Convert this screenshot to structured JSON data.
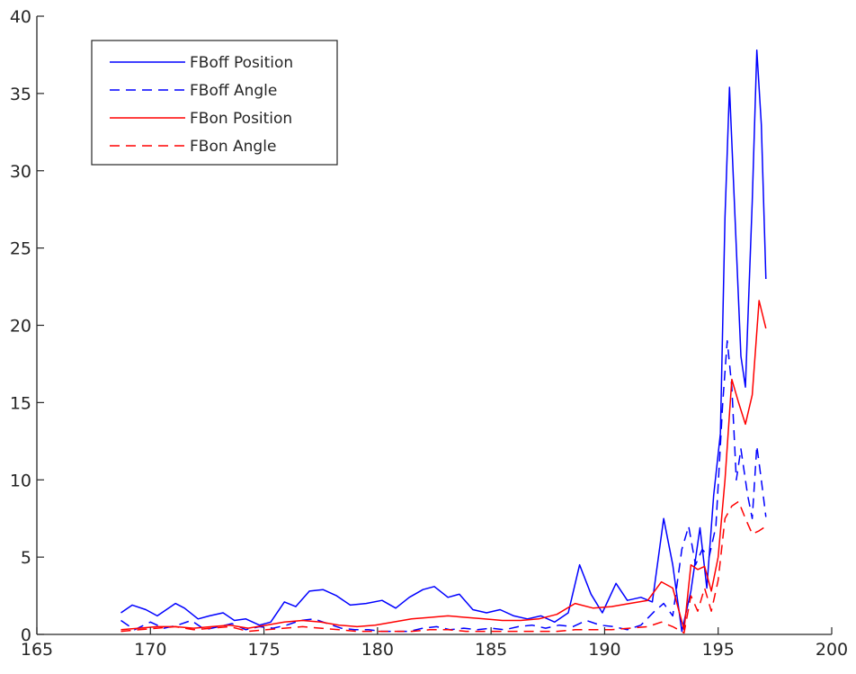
{
  "chart_data": {
    "type": "line",
    "title": "",
    "xlabel": "",
    "ylabel": "",
    "xlim": [
      165,
      200
    ],
    "ylim": [
      0,
      40
    ],
    "xticks": [
      165,
      170,
      175,
      180,
      185,
      190,
      195,
      200
    ],
    "yticks": [
      0,
      5,
      10,
      15,
      20,
      25,
      30,
      35,
      40
    ],
    "xtick_labels": [
      "165",
      "170",
      "175",
      "180",
      "185",
      "190",
      "195",
      "200"
    ],
    "ytick_labels": [
      "0",
      "5",
      "10",
      "15",
      "20",
      "25",
      "30",
      "35",
      "40"
    ],
    "grid": false,
    "legend_placement": "top-left",
    "colors": {
      "blue": "#0000ff",
      "red": "#ff0000",
      "axis": "#262626"
    },
    "series": [
      {
        "name": "FBoff Position",
        "color": "#0000ff",
        "dash": "solid",
        "x": [
          168.7,
          169.2,
          169.8,
          170.3,
          171.1,
          171.5,
          172.1,
          172.6,
          173.2,
          173.7,
          174.2,
          174.8,
          175.3,
          175.9,
          176.4,
          177.0,
          177.6,
          178.2,
          178.8,
          179.5,
          180.2,
          180.8,
          181.4,
          182.0,
          182.5,
          183.1,
          183.6,
          184.2,
          184.8,
          185.4,
          186.0,
          186.6,
          187.2,
          187.8,
          188.4,
          188.9,
          189.4,
          189.9,
          190.5,
          191.0,
          191.6,
          192.1,
          192.6,
          193.0,
          193.4,
          193.8,
          194.2,
          194.5,
          194.8,
          195.1,
          195.3,
          195.5,
          195.8,
          196.0,
          196.2,
          196.5,
          196.7,
          196.9,
          197.1
        ],
        "y": [
          1.4,
          1.9,
          1.6,
          1.2,
          2.0,
          1.7,
          1.0,
          1.2,
          1.4,
          0.9,
          1.0,
          0.6,
          0.8,
          2.1,
          1.8,
          2.8,
          2.9,
          2.5,
          1.9,
          2.0,
          2.2,
          1.7,
          2.4,
          2.9,
          3.1,
          2.4,
          2.6,
          1.6,
          1.4,
          1.6,
          1.2,
          1.0,
          1.2,
          0.8,
          1.4,
          4.5,
          2.6,
          1.4,
          3.3,
          2.2,
          2.4,
          2.1,
          7.5,
          4.5,
          0.2,
          2.8,
          6.9,
          3.0,
          9.0,
          13.0,
          27.0,
          35.4,
          25.0,
          18.0,
          16.0,
          28.0,
          37.8,
          33.0,
          23.0
        ]
      },
      {
        "name": "FBoff Angle",
        "color": "#0000ff",
        "dash": "dashed",
        "x": [
          168.7,
          169.3,
          170.0,
          170.6,
          171.2,
          171.8,
          172.4,
          173.0,
          173.6,
          174.2,
          174.8,
          175.4,
          176.0,
          176.6,
          177.2,
          177.8,
          178.4,
          179.0,
          179.6,
          180.2,
          180.8,
          181.4,
          182.0,
          182.6,
          183.2,
          183.8,
          184.4,
          185.0,
          185.6,
          186.2,
          186.8,
          187.4,
          188.0,
          188.6,
          189.2,
          189.8,
          190.4,
          191.0,
          191.6,
          192.2,
          192.6,
          193.0,
          193.4,
          193.7,
          194.0,
          194.3,
          194.6,
          194.9,
          195.2,
          195.4,
          195.6,
          195.8,
          196.0,
          196.3,
          196.5,
          196.7,
          196.9,
          197.1
        ],
        "y": [
          0.9,
          0.3,
          0.8,
          0.4,
          0.6,
          0.9,
          0.3,
          0.5,
          0.7,
          0.3,
          0.5,
          0.4,
          0.6,
          0.9,
          1.0,
          0.7,
          0.4,
          0.3,
          0.3,
          0.2,
          0.2,
          0.2,
          0.4,
          0.5,
          0.3,
          0.4,
          0.3,
          0.4,
          0.3,
          0.5,
          0.6,
          0.4,
          0.6,
          0.5,
          0.9,
          0.6,
          0.5,
          0.3,
          0.6,
          1.5,
          2.0,
          1.2,
          5.5,
          7.0,
          4.5,
          5.5,
          5.0,
          7.0,
          15.0,
          19.0,
          16.0,
          10.0,
          12.0,
          9.0,
          7.5,
          12.2,
          10.0,
          7.6
        ]
      },
      {
        "name": "FBon Position",
        "color": "#ff0000",
        "dash": "solid",
        "x": [
          168.7,
          169.5,
          170.3,
          171.1,
          171.9,
          172.7,
          173.5,
          174.3,
          175.1,
          175.9,
          176.7,
          177.5,
          178.3,
          179.1,
          179.9,
          180.7,
          181.5,
          182.3,
          183.1,
          183.9,
          184.7,
          185.5,
          186.3,
          187.1,
          187.9,
          188.7,
          189.5,
          190.3,
          191.1,
          191.9,
          192.5,
          193.0,
          193.5,
          193.8,
          194.1,
          194.4,
          194.7,
          195.0,
          195.3,
          195.6,
          195.9,
          196.2,
          196.5,
          196.8,
          197.1
        ],
        "y": [
          0.3,
          0.4,
          0.5,
          0.5,
          0.4,
          0.5,
          0.6,
          0.4,
          0.6,
          0.8,
          0.9,
          0.8,
          0.6,
          0.5,
          0.6,
          0.8,
          1.0,
          1.1,
          1.2,
          1.1,
          1.0,
          0.9,
          0.9,
          1.0,
          1.3,
          2.0,
          1.7,
          1.8,
          2.0,
          2.2,
          3.4,
          3.0,
          0.3,
          4.5,
          4.2,
          4.4,
          2.8,
          5.0,
          10.0,
          16.5,
          15.0,
          13.6,
          15.5,
          21.6,
          19.8
        ]
      },
      {
        "name": "FBon Angle",
        "color": "#ff0000",
        "dash": "dashed",
        "x": [
          168.7,
          169.5,
          170.3,
          171.1,
          171.9,
          172.7,
          173.5,
          174.3,
          175.1,
          175.9,
          176.7,
          177.5,
          178.3,
          179.1,
          179.9,
          180.7,
          181.5,
          182.3,
          183.1,
          183.9,
          184.7,
          185.5,
          186.3,
          187.1,
          187.9,
          188.7,
          189.5,
          190.3,
          191.1,
          191.9,
          192.5,
          193.0,
          193.5,
          193.8,
          194.1,
          194.4,
          194.7,
          195.0,
          195.3,
          195.6,
          195.9,
          196.2,
          196.5,
          196.8,
          197.1
        ],
        "y": [
          0.2,
          0.3,
          0.4,
          0.5,
          0.3,
          0.4,
          0.5,
          0.2,
          0.3,
          0.4,
          0.5,
          0.4,
          0.3,
          0.2,
          0.2,
          0.2,
          0.2,
          0.3,
          0.3,
          0.2,
          0.2,
          0.2,
          0.2,
          0.2,
          0.2,
          0.3,
          0.3,
          0.3,
          0.4,
          0.5,
          0.8,
          0.5,
          0.1,
          2.5,
          1.5,
          3.0,
          1.5,
          3.5,
          7.5,
          8.3,
          8.6,
          7.5,
          6.5,
          6.7,
          7.0
        ]
      }
    ]
  }
}
